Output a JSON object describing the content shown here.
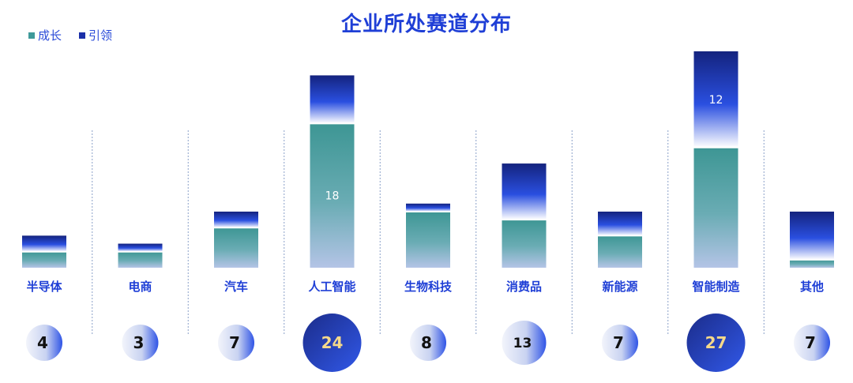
{
  "colors": {
    "growth": "#3f9a9a",
    "leading": "#1b2fa8",
    "title": "#1f3fd6",
    "divider": "#8aa0c8"
  },
  "chart_data": {
    "type": "bar",
    "title": "企业所处赛道分布",
    "legend_position": "top-left",
    "categories": [
      "半导体",
      "电商",
      "汽车",
      "人工智能",
      "生物科技",
      "消费品",
      "新能源",
      "智能制造",
      "其他"
    ],
    "series": [
      {
        "name": "成长",
        "values": [
          2,
          2,
          5,
          18,
          7,
          6,
          4,
          15,
          1
        ],
        "labels": [
          "",
          "",
          "",
          "18",
          "",
          "",
          "",
          "",
          ""
        ]
      },
      {
        "name": "引领",
        "values": [
          2,
          1,
          2,
          6,
          1,
          7,
          3,
          12,
          6
        ],
        "labels": [
          "",
          "",
          "",
          "",
          "",
          "",
          "",
          "12",
          ""
        ]
      }
    ],
    "totals": [
      "4",
      "3",
      "7",
      "24",
      "8",
      "13",
      "7",
      "27",
      "7"
    ],
    "ylim": [
      0,
      27
    ]
  }
}
